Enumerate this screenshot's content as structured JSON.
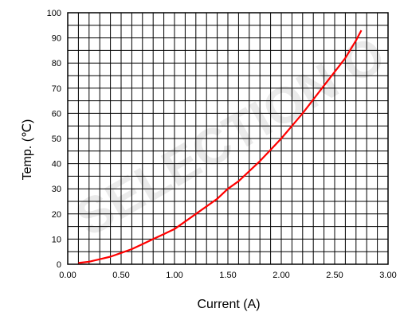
{
  "chart_data": {
    "type": "line",
    "title": "",
    "xlabel": "Current  (A)",
    "ylabel": "Temp.  (℃)",
    "xlim": [
      0,
      3.0
    ],
    "ylim": [
      0,
      100
    ],
    "x_ticks": [
      "0.00",
      "0.50",
      "1.00",
      "1.50",
      "2.00",
      "2.50",
      "3.00"
    ],
    "y_ticks": [
      "0",
      "10",
      "20",
      "30",
      "40",
      "50",
      "60",
      "70",
      "80",
      "90",
      "100"
    ],
    "grid": true,
    "legend": "none",
    "watermark": "SELECTION O",
    "series": [
      {
        "color": "#ff0000",
        "x": [
          0.1,
          0.2,
          0.3,
          0.4,
          0.5,
          0.6,
          0.7,
          0.8,
          0.9,
          1.0,
          1.1,
          1.2,
          1.3,
          1.4,
          1.5,
          1.6,
          1.7,
          1.8,
          1.9,
          2.0,
          2.1,
          2.2,
          2.3,
          2.4,
          2.5,
          2.6,
          2.7,
          2.75
        ],
        "y": [
          0.5,
          1,
          2,
          3,
          4.5,
          6,
          8,
          10,
          12,
          14,
          17,
          20,
          23,
          26,
          30,
          33,
          37,
          41,
          45.5,
          50,
          55,
          60,
          65.5,
          71,
          76.5,
          82,
          89,
          93
        ]
      }
    ]
  }
}
